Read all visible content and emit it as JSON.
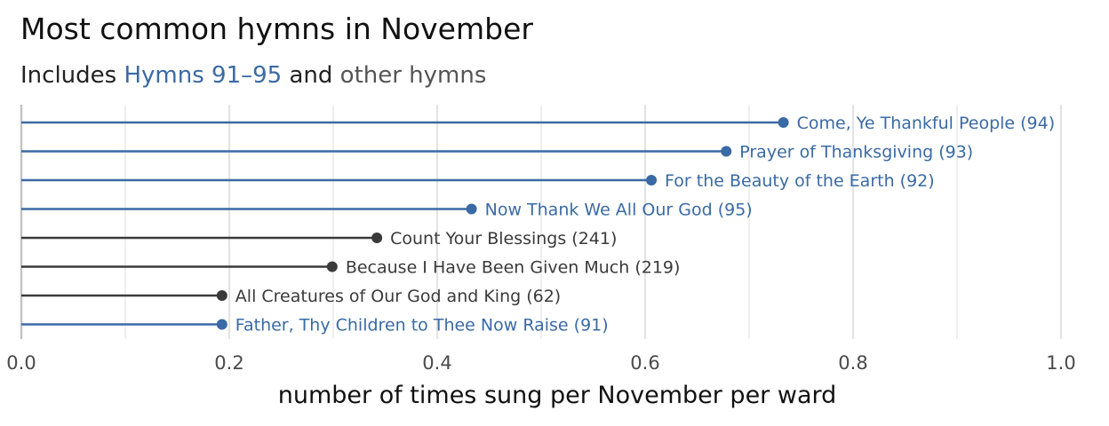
{
  "chart_data": {
    "type": "lollipop",
    "title": "Most common hymns in November",
    "subtitle": {
      "prefix": "Includes ",
      "highlight": "Hymns 91–95",
      "middle": " and ",
      "other": "other hymns"
    },
    "xlabel": "number of times sung per November per ward",
    "xlim": [
      0,
      1.0
    ],
    "xticks": [
      {
        "value": 0.0,
        "label": "0.0"
      },
      {
        "value": 0.2,
        "label": "0.2"
      },
      {
        "value": 0.4,
        "label": "0.4"
      },
      {
        "value": 0.6,
        "label": "0.6"
      },
      {
        "value": 0.8,
        "label": "0.8"
      },
      {
        "value": 1.0,
        "label": "1.0"
      }
    ],
    "minor_gridlines": [
      0.1,
      0.3,
      0.5,
      0.7,
      0.9
    ],
    "grid": true,
    "colors": {
      "highlight": "#3a6aa5",
      "other": "#3a3a3a",
      "grid": "#e4e4e4",
      "axis": "#c4c4c4"
    },
    "points": [
      {
        "label": "Come, Ye Thankful People (94)",
        "value": 0.733,
        "group": "highlight"
      },
      {
        "label": "Prayer of Thanksgiving (93)",
        "value": 0.678,
        "group": "highlight"
      },
      {
        "label": "For the Beauty of the Earth (92)",
        "value": 0.606,
        "group": "highlight"
      },
      {
        "label": "Now Thank We All Our God (95)",
        "value": 0.433,
        "group": "highlight"
      },
      {
        "label": "Count Your Blessings (241)",
        "value": 0.342,
        "group": "other"
      },
      {
        "label": "Because I Have Been Given Much (219)",
        "value": 0.299,
        "group": "other"
      },
      {
        "label": "All Creatures of Our God and King (62)",
        "value": 0.193,
        "group": "other"
      },
      {
        "label": "Father, Thy Children to Thee Now Raise (91)",
        "value": 0.193,
        "group": "highlight"
      }
    ]
  }
}
